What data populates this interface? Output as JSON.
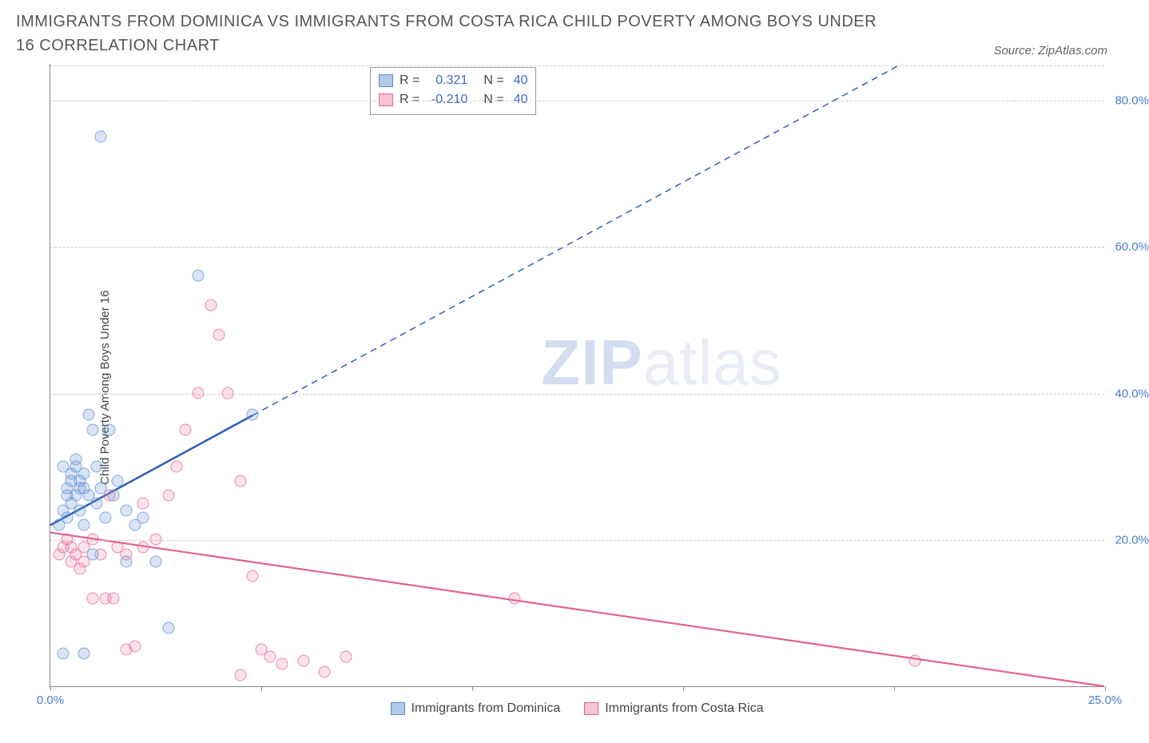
{
  "header": {
    "title": "IMMIGRANTS FROM DOMINICA VS IMMIGRANTS FROM COSTA RICA CHILD POVERTY AMONG BOYS UNDER 16 CORRELATION CHART",
    "source": "Source: ZipAtlas.com"
  },
  "chart": {
    "type": "scatter",
    "y_axis_title": "Child Poverty Among Boys Under 16",
    "xlim": [
      0,
      25
    ],
    "ylim": [
      0,
      85
    ],
    "x_ticks": [
      0,
      5,
      10,
      15,
      20,
      25
    ],
    "x_tick_labels": [
      "0.0%",
      "",
      "",
      "",
      "",
      "25.0%"
    ],
    "y_ticks": [
      20,
      40,
      60,
      80
    ],
    "y_tick_labels": [
      "20.0%",
      "40.0%",
      "60.0%",
      "80.0%"
    ],
    "grid_color": "#cccccc",
    "axis_color": "#888888",
    "background_color": "#ffffff",
    "watermark": {
      "zip": "ZIP",
      "atlas": "atlas"
    }
  },
  "series": {
    "dominica": {
      "label": "Immigrants from Dominica",
      "marker_fill": "rgba(108,155,220,0.35)",
      "marker_stroke": "#5a8cd0",
      "swatch_fill": "#b2c9ec",
      "swatch_stroke": "#5a8cd0",
      "r_value": "0.321",
      "n_value": "40",
      "trend": {
        "color": "#2e5db5",
        "x1": 0,
        "y1": 22,
        "x_solid_end": 4.8,
        "y_solid_end": 37,
        "x2": 25,
        "y2": 100
      },
      "points": [
        [
          0.2,
          22
        ],
        [
          0.3,
          24
        ],
        [
          0.4,
          26
        ],
        [
          0.4,
          27
        ],
        [
          0.5,
          28
        ],
        [
          0.5,
          29
        ],
        [
          0.6,
          30
        ],
        [
          0.6,
          26
        ],
        [
          0.7,
          28
        ],
        [
          0.7,
          24
        ],
        [
          0.8,
          29
        ],
        [
          0.8,
          22
        ],
        [
          0.9,
          37
        ],
        [
          1.0,
          35
        ],
        [
          1.0,
          18
        ],
        [
          1.1,
          30
        ],
        [
          1.2,
          27
        ],
        [
          1.3,
          23
        ],
        [
          1.4,
          35
        ],
        [
          1.5,
          26
        ],
        [
          1.6,
          28
        ],
        [
          1.8,
          24
        ],
        [
          1.8,
          17
        ],
        [
          2.0,
          22
        ],
        [
          2.2,
          23
        ],
        [
          2.5,
          17
        ],
        [
          2.8,
          8
        ],
        [
          0.3,
          4.5
        ],
        [
          0.8,
          4.5
        ],
        [
          1.2,
          75
        ],
        [
          3.5,
          56
        ],
        [
          4.8,
          37
        ],
        [
          0.3,
          30
        ],
        [
          0.6,
          31
        ],
        [
          0.5,
          25
        ],
        [
          0.9,
          26
        ],
        [
          1.1,
          25
        ],
        [
          0.4,
          23
        ],
        [
          0.7,
          27
        ],
        [
          0.8,
          27
        ]
      ]
    },
    "costarica": {
      "label": "Immigrants from Costa Rica",
      "marker_fill": "rgba(235,120,160,0.30)",
      "marker_stroke": "#e3628f",
      "swatch_fill": "#f6c4d4",
      "swatch_stroke": "#e3628f",
      "r_value": "-0.210",
      "n_value": "40",
      "trend": {
        "color": "#e3628f",
        "x1": 0,
        "y1": 21,
        "x2": 25,
        "y2": 0
      },
      "points": [
        [
          0.2,
          18
        ],
        [
          0.3,
          19
        ],
        [
          0.4,
          20
        ],
        [
          0.5,
          17
        ],
        [
          0.5,
          19
        ],
        [
          0.6,
          18
        ],
        [
          0.7,
          16
        ],
        [
          0.8,
          19
        ],
        [
          0.8,
          17
        ],
        [
          1.0,
          20
        ],
        [
          1.0,
          12
        ],
        [
          1.2,
          18
        ],
        [
          1.3,
          12
        ],
        [
          1.5,
          12
        ],
        [
          1.6,
          19
        ],
        [
          1.8,
          5
        ],
        [
          2.0,
          5.5
        ],
        [
          2.2,
          25
        ],
        [
          2.2,
          19
        ],
        [
          2.5,
          20
        ],
        [
          2.8,
          26
        ],
        [
          3.0,
          30
        ],
        [
          3.2,
          35
        ],
        [
          3.5,
          40
        ],
        [
          3.8,
          52
        ],
        [
          4.0,
          48
        ],
        [
          4.2,
          40
        ],
        [
          4.5,
          28
        ],
        [
          4.8,
          15
        ],
        [
          5.0,
          5
        ],
        [
          5.2,
          4
        ],
        [
          5.5,
          3
        ],
        [
          6.0,
          3.5
        ],
        [
          6.5,
          2
        ],
        [
          7.0,
          4
        ],
        [
          4.5,
          1.5
        ],
        [
          11.0,
          12
        ],
        [
          20.5,
          3.5
        ],
        [
          1.4,
          26
        ],
        [
          1.8,
          18
        ]
      ]
    }
  },
  "stats_box": {
    "r_label": "R =",
    "n_label": "N ="
  },
  "bottom_legend": {
    "dominica": "Immigrants from Dominica",
    "costarica": "Immigrants from Costa Rica"
  }
}
